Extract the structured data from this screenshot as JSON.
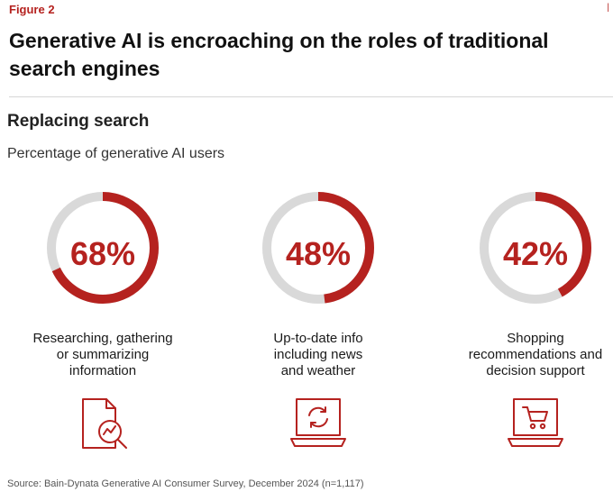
{
  "figure_label": "Figure 2",
  "title": "Generative AI is encroaching on the roles of traditional search engines",
  "subtitle": "Replacing search",
  "measure_label": "Percentage of generative AI users",
  "source": "Source: Bain-Dynata Generative AI Consumer Survey, December 2024 (n=1,117)",
  "colors": {
    "accent": "#b5221f",
    "track": "#d9d9d9",
    "icon": "#b5221f"
  },
  "chart_data": {
    "type": "donut",
    "title": "Replacing search",
    "unit": "%",
    "categories": [
      [
        "Researching, gathering",
        "or summarizing",
        "information"
      ],
      [
        "Up-to-date info",
        "including news",
        "and weather"
      ],
      [
        "Shopping",
        "recommendations and",
        "decision support"
      ]
    ],
    "values": [
      68,
      48,
      42
    ],
    "labels": [
      "68%",
      "48%",
      "42%"
    ],
    "icons": [
      "document-search-icon",
      "laptop-refresh-icon",
      "laptop-shopping-cart-icon"
    ]
  }
}
